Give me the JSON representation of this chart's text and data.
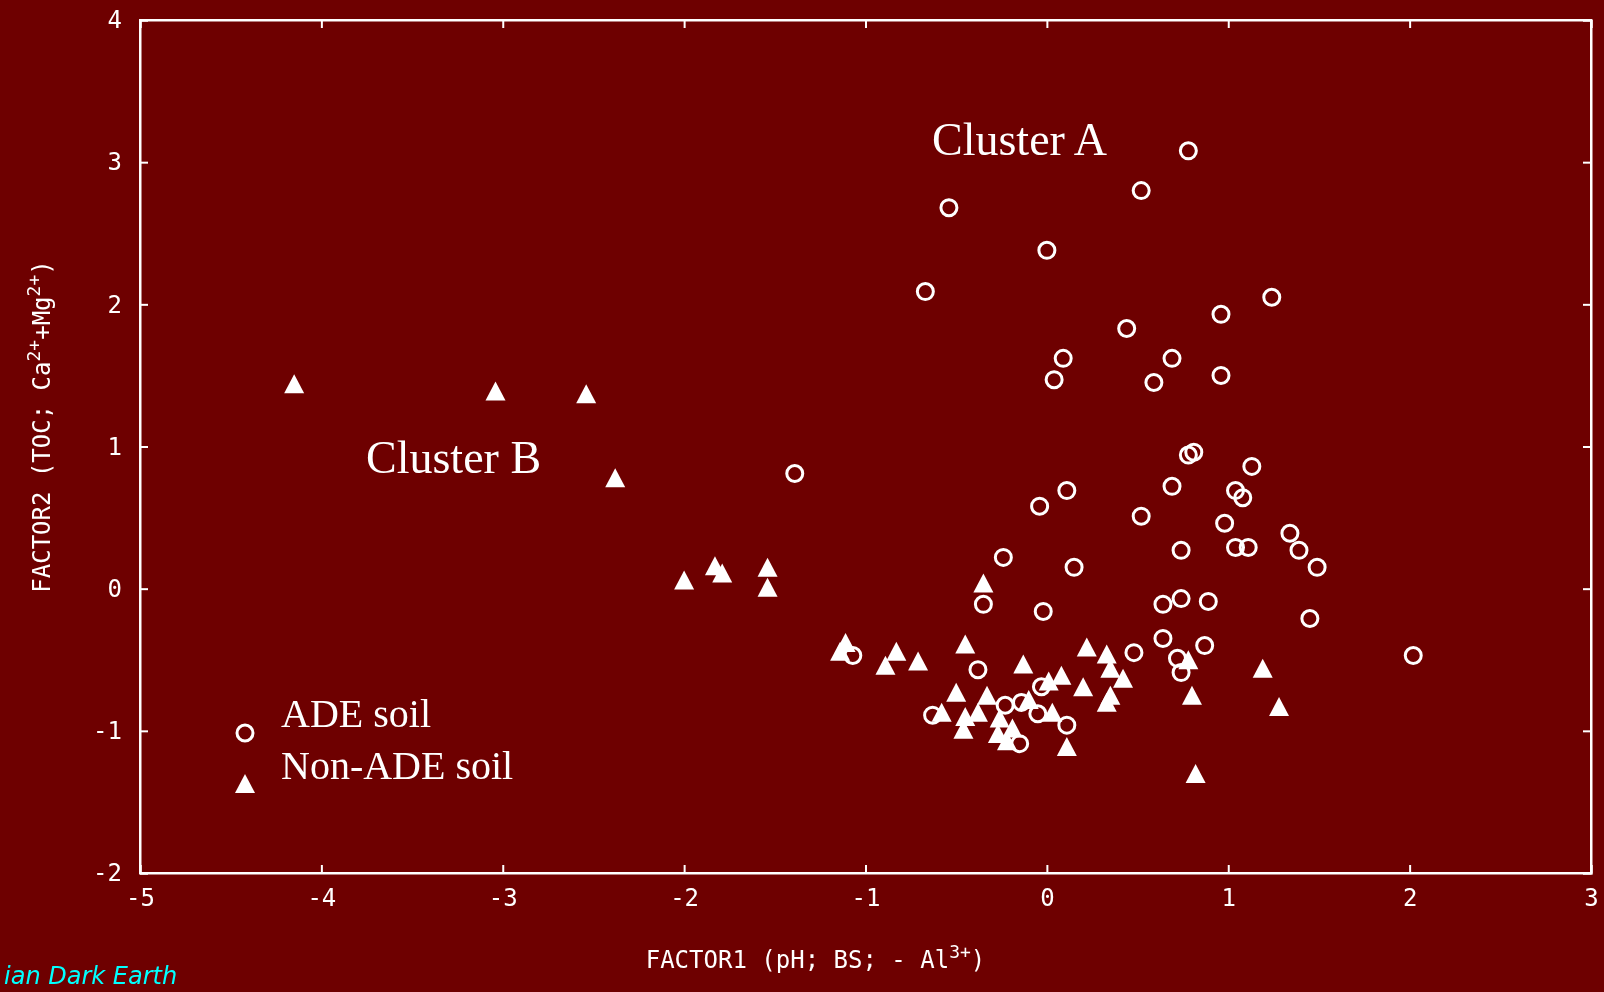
{
  "chart_data": {
    "type": "scatter",
    "xlabel": "FACTOR1 (pH; BS; - Al$^{3+}$)",
    "ylabel": "FACTOR2 (TOC; Ca$^{2+}$+Mg$^{2+}$)",
    "xlim": [
      -5,
      3
    ],
    "xticks": [
      -5,
      -4,
      -3,
      -2,
      -1,
      0,
      1,
      2,
      3
    ],
    "ylim": [
      -2,
      4
    ],
    "yticks": [
      -2,
      -1,
      0,
      1,
      2,
      3,
      4
    ],
    "grid": false,
    "legend": "bottom left",
    "annotations": [
      "Cluster A",
      "Cluster B",
      "ian Dark Earth"
    ],
    "series": [
      {
        "name": "ADE soil",
        "color": "#ffffff",
        "marker": "circle",
        "x": [
          0.78,
          0.52,
          -0.54,
          0.0,
          -0.67,
          1.24,
          0.44,
          0.96,
          0.09,
          0.04,
          0.69,
          0.59,
          0.96,
          -1.39,
          0.78,
          0.81,
          1.13,
          0.69,
          1.04,
          1.08,
          0.11,
          -0.04,
          0.52,
          0.98,
          1.34,
          0.74,
          1.04,
          1.11,
          1.39,
          1.49,
          -0.24,
          0.15,
          0.64,
          0.74,
          0.89,
          -0.35,
          -0.02,
          1.45,
          2.02,
          0.48,
          0.64,
          0.87,
          0.72,
          0.74,
          -1.07,
          -0.38,
          -0.63,
          0.11,
          -0.15,
          -0.23,
          -0.14,
          -0.03,
          -0.05,
          null
        ],
        "values": [
          3.08,
          2.8,
          2.68,
          2.38,
          2.09,
          2.05,
          1.83,
          1.93,
          1.62,
          1.47,
          1.62,
          1.45,
          1.5,
          0.81,
          0.94,
          0.96,
          0.86,
          0.72,
          0.69,
          0.64,
          0.69,
          0.58,
          0.51,
          0.46,
          0.39,
          0.27,
          0.29,
          0.29,
          0.27,
          0.15,
          0.22,
          0.15,
          -0.11,
          -0.07,
          -0.09,
          -0.11,
          -0.16,
          -0.21,
          -0.47,
          -0.45,
          -0.35,
          -0.4,
          -0.49,
          -0.59,
          -0.47,
          -0.57,
          -0.89,
          -0.96,
          -1.09,
          -0.82,
          -0.8,
          -0.69,
          -0.88,
          null
        ]
      },
      {
        "name": "Non-ADE soil",
        "color": "#ffffff",
        "marker": "triangle",
        "x": [
          -4.15,
          -3.04,
          -2.54,
          -2.38,
          -2.0,
          -1.83,
          -1.79,
          -1.54,
          -1.54,
          -0.35,
          -1.11,
          -1.14,
          -0.83,
          -0.89,
          -0.71,
          -0.45,
          -0.5,
          -0.13,
          0.22,
          0.33,
          0.2,
          0.35,
          0.42,
          0.35,
          0.33,
          0.08,
          0.01,
          0.78,
          0.8,
          1.19,
          1.28,
          0.82,
          0.11,
          0.03,
          -0.33,
          -0.58,
          -0.46,
          -0.45,
          -0.38,
          -0.27,
          -0.26,
          -0.19,
          -0.22,
          -0.1
        ],
        "values": [
          1.43,
          1.38,
          1.36,
          0.77,
          0.05,
          0.15,
          0.1,
          0.14,
          0.0,
          0.03,
          -0.39,
          -0.45,
          -0.45,
          -0.55,
          -0.52,
          -0.4,
          -0.74,
          -0.54,
          -0.42,
          -0.47,
          -0.7,
          -0.57,
          -0.64,
          -0.76,
          -0.81,
          -0.62,
          -0.66,
          -0.51,
          -0.76,
          -0.57,
          -0.84,
          -1.31,
          -1.12,
          -0.88,
          -0.76,
          -0.88,
          -1.0,
          -0.91,
          -0.88,
          -1.03,
          -0.92,
          -0.99,
          -1.08,
          -0.79
        ]
      }
    ]
  }
}
